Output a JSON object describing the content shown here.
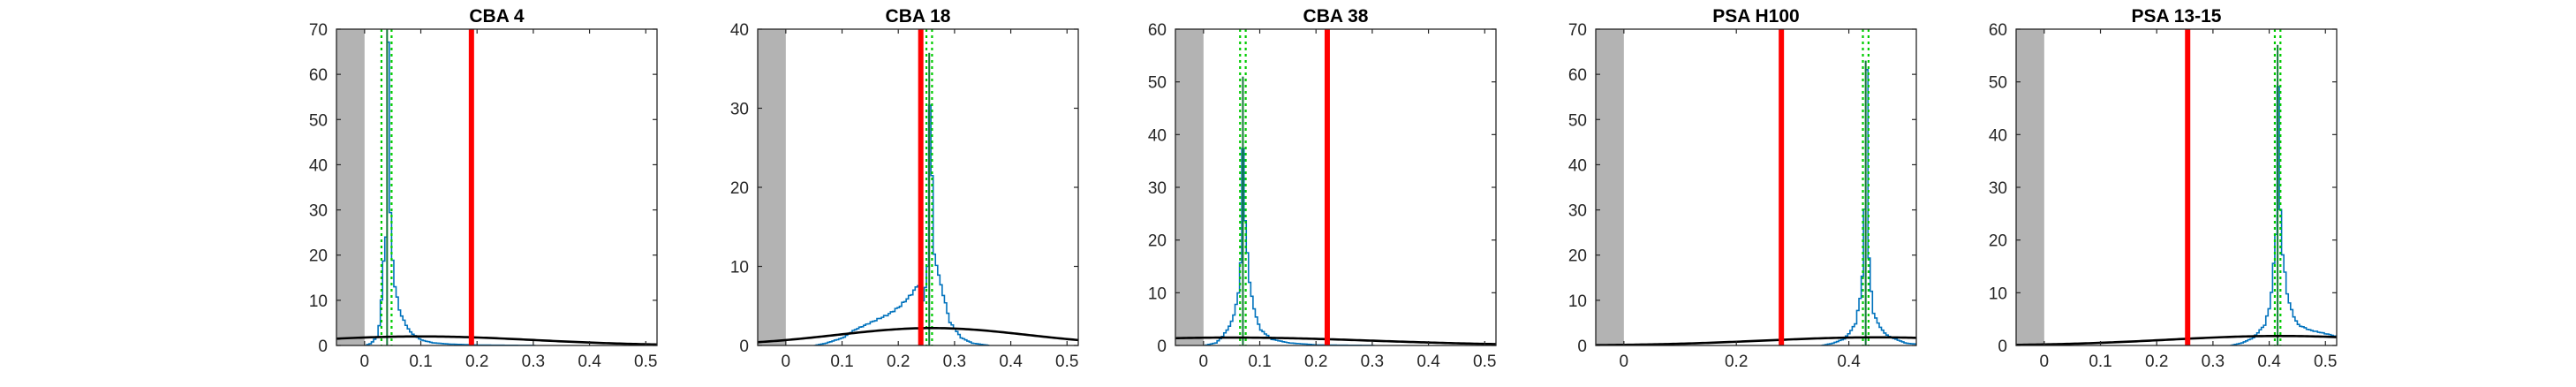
{
  "chart_data": [
    {
      "type": "histogram",
      "title": "CBA 4",
      "xlim": [
        -0.05,
        0.52
      ],
      "ylim": [
        0,
        70
      ],
      "xticks": [
        0,
        0.1,
        0.2,
        0.3,
        0.4,
        0.5
      ],
      "xtick_labels": [
        "0",
        "0.1",
        "0.2",
        "0.3",
        "0.4",
        "0.5"
      ],
      "yticks": [
        0,
        10,
        20,
        30,
        40,
        50,
        60,
        70
      ],
      "shaded_region": [
        -0.05,
        0
      ],
      "red_line_x": 0.19,
      "green_dotted_x": [
        0.03,
        0.048
      ],
      "histogram_peak_x": 0.04,
      "histogram_peak_y": 70,
      "histogram_samples": [
        [
          0.0,
          0
        ],
        [
          0.01,
          0.5
        ],
        [
          0.02,
          2
        ],
        [
          0.025,
          5
        ],
        [
          0.03,
          14
        ],
        [
          0.033,
          22
        ],
        [
          0.036,
          24
        ],
        [
          0.038,
          30
        ],
        [
          0.04,
          70
        ],
        [
          0.042,
          40
        ],
        [
          0.045,
          25
        ],
        [
          0.05,
          15
        ],
        [
          0.06,
          8
        ],
        [
          0.07,
          5
        ],
        [
          0.08,
          3
        ],
        [
          0.09,
          2
        ],
        [
          0.1,
          1.2
        ],
        [
          0.12,
          0.6
        ],
        [
          0.15,
          0.3
        ],
        [
          0.2,
          0.1
        ],
        [
          0.3,
          0
        ]
      ],
      "gaussian": {
        "mu": 0.1,
        "sigma": 0.2,
        "peak": 2
      },
      "colors": {
        "histogram": "#0072BD",
        "red_line": "#FF0000",
        "green": "#00CC00",
        "gaussian": "#000000",
        "shade": "#b3b3b3"
      }
    },
    {
      "type": "histogram",
      "title": "CBA 18",
      "xlim": [
        -0.05,
        0.52
      ],
      "ylim": [
        0,
        40
      ],
      "xticks": [
        0,
        0.1,
        0.2,
        0.3,
        0.4,
        0.5
      ],
      "xtick_labels": [
        "0",
        "0.1",
        "0.2",
        "0.3",
        "0.4",
        "0.5"
      ],
      "yticks": [
        0,
        10,
        20,
        30,
        40
      ],
      "shaded_region": [
        -0.05,
        0
      ],
      "red_line_x": 0.24,
      "green_dotted_x": [
        0.25,
        0.26
      ],
      "histogram_peak_x": 0.255,
      "histogram_peak_y": 37,
      "histogram_samples": [
        [
          0.05,
          0
        ],
        [
          0.07,
          0.3
        ],
        [
          0.1,
          1
        ],
        [
          0.12,
          2
        ],
        [
          0.15,
          3
        ],
        [
          0.18,
          4
        ],
        [
          0.2,
          5
        ],
        [
          0.22,
          6.5
        ],
        [
          0.235,
          8
        ],
        [
          0.24,
          5
        ],
        [
          0.245,
          7
        ],
        [
          0.25,
          10
        ],
        [
          0.255,
          37
        ],
        [
          0.26,
          12
        ],
        [
          0.265,
          11
        ],
        [
          0.27,
          9
        ],
        [
          0.28,
          6
        ],
        [
          0.29,
          3
        ],
        [
          0.3,
          2
        ],
        [
          0.31,
          1
        ],
        [
          0.33,
          0.3
        ],
        [
          0.36,
          0
        ]
      ],
      "gaussian": {
        "mu": 0.26,
        "sigma": 0.17,
        "peak": 2.2
      },
      "colors": {
        "histogram": "#0072BD",
        "red_line": "#FF0000",
        "green": "#00CC00",
        "gaussian": "#000000",
        "shade": "#b3b3b3"
      }
    },
    {
      "type": "histogram",
      "title": "CBA 38",
      "xlim": [
        -0.05,
        0.52
      ],
      "ylim": [
        0,
        60
      ],
      "xticks": [
        0,
        0.1,
        0.2,
        0.3,
        0.4,
        0.5
      ],
      "xtick_labels": [
        "0",
        "0.1",
        "0.2",
        "0.3",
        "0.4",
        "0.5"
      ],
      "yticks": [
        0,
        10,
        20,
        30,
        40,
        50,
        60
      ],
      "shaded_region": [
        -0.05,
        0
      ],
      "red_line_x": 0.22,
      "green_dotted_x": [
        0.065,
        0.075
      ],
      "histogram_peak_x": 0.07,
      "histogram_peak_y": 51,
      "histogram_samples": [
        [
          0.0,
          0
        ],
        [
          0.02,
          0.5
        ],
        [
          0.03,
          1.5
        ],
        [
          0.04,
          3
        ],
        [
          0.05,
          5
        ],
        [
          0.06,
          10
        ],
        [
          0.065,
          18
        ],
        [
          0.07,
          51
        ],
        [
          0.072,
          24
        ],
        [
          0.075,
          20
        ],
        [
          0.08,
          12
        ],
        [
          0.09,
          6
        ],
        [
          0.1,
          3
        ],
        [
          0.12,
          1.2
        ],
        [
          0.15,
          0.5
        ],
        [
          0.2,
          0.1
        ],
        [
          0.3,
          0
        ]
      ],
      "gaussian": {
        "mu": 0.05,
        "sigma": 0.25,
        "peak": 1.5
      },
      "colors": {
        "histogram": "#0072BD",
        "red_line": "#FF0000",
        "green": "#00CC00",
        "gaussian": "#000000",
        "shade": "#b3b3b3"
      }
    },
    {
      "type": "histogram",
      "title": "PSA H100",
      "xlim": [
        -0.05,
        0.52
      ],
      "ylim": [
        0,
        70
      ],
      "xticks": [
        0,
        0.2,
        0.4
      ],
      "xtick_labels": [
        "0",
        "0.2",
        "0.4"
      ],
      "yticks": [
        0,
        10,
        20,
        30,
        40,
        50,
        60,
        70
      ],
      "shaded_region": [
        -0.05,
        0
      ],
      "red_line_x": 0.28,
      "green_dotted_x": [
        0.425,
        0.435
      ],
      "histogram_peak_x": 0.43,
      "histogram_peak_y": 63,
      "histogram_samples": [
        [
          0.35,
          0
        ],
        [
          0.37,
          0.5
        ],
        [
          0.39,
          1.5
        ],
        [
          0.4,
          3
        ],
        [
          0.41,
          5
        ],
        [
          0.42,
          12
        ],
        [
          0.425,
          22
        ],
        [
          0.43,
          63
        ],
        [
          0.432,
          24
        ],
        [
          0.435,
          18
        ],
        [
          0.44,
          8
        ],
        [
          0.45,
          5
        ],
        [
          0.46,
          3
        ],
        [
          0.47,
          2
        ],
        [
          0.48,
          1.5
        ],
        [
          0.49,
          1
        ],
        [
          0.5,
          0.5
        ],
        [
          0.52,
          0.3
        ]
      ],
      "gaussian": {
        "mu": 0.45,
        "sigma": 0.2,
        "peak": 1.8
      },
      "colors": {
        "histogram": "#0072BD",
        "red_line": "#FF0000",
        "green": "#00CC00",
        "gaussian": "#000000",
        "shade": "#b3b3b3"
      }
    },
    {
      "type": "histogram",
      "title": "PSA 13-15",
      "xlim": [
        -0.05,
        0.52
      ],
      "ylim": [
        0,
        60
      ],
      "xticks": [
        0,
        0.1,
        0.2,
        0.3,
        0.4,
        0.5
      ],
      "xtick_labels": [
        "0",
        "0.1",
        "0.2",
        "0.3",
        "0.4",
        "0.5"
      ],
      "yticks": [
        0,
        10,
        20,
        30,
        40,
        50,
        60
      ],
      "shaded_region": [
        -0.05,
        0
      ],
      "red_line_x": 0.255,
      "green_dotted_x": [
        0.41,
        0.42
      ],
      "histogram_peak_x": 0.415,
      "histogram_peak_y": 57,
      "histogram_samples": [
        [
          0.33,
          0
        ],
        [
          0.35,
          0.5
        ],
        [
          0.37,
          1.5
        ],
        [
          0.39,
          4
        ],
        [
          0.4,
          8
        ],
        [
          0.405,
          14
        ],
        [
          0.41,
          22
        ],
        [
          0.415,
          57
        ],
        [
          0.418,
          26
        ],
        [
          0.42,
          20
        ],
        [
          0.43,
          10
        ],
        [
          0.44,
          6
        ],
        [
          0.45,
          4
        ],
        [
          0.47,
          3
        ],
        [
          0.49,
          2.5
        ],
        [
          0.51,
          2
        ],
        [
          0.52,
          1.5
        ]
      ],
      "gaussian": {
        "mu": 0.42,
        "sigma": 0.2,
        "peak": 1.8
      },
      "colors": {
        "histogram": "#0072BD",
        "red_line": "#FF0000",
        "green": "#00CC00",
        "gaussian": "#000000",
        "shade": "#b3b3b3"
      }
    }
  ]
}
